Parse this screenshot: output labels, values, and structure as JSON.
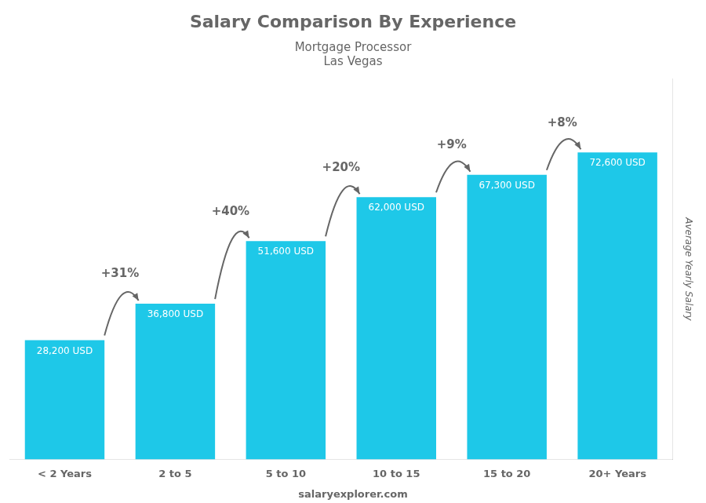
{
  "chart_data": {
    "type": "bar",
    "title": "Salary Comparison By Experience",
    "subtitle": [
      "Mortgage Processor",
      "Las Vegas"
    ],
    "ylabel": "Average Yearly Salary",
    "categories": [
      "< 2 Years",
      "2 to 5",
      "5 to 10",
      "10 to 15",
      "15 to 20",
      "20+ Years"
    ],
    "values": [
      28200,
      36800,
      51600,
      62000,
      67300,
      72600
    ],
    "value_labels": [
      "28,200 USD",
      "36,800 USD",
      "51,600 USD",
      "62,000 USD",
      "67,300 USD",
      "72,600 USD"
    ],
    "data_labels": true,
    "annotations": [
      "+31%",
      "+40%",
      "+20%",
      "+9%",
      "+8%"
    ],
    "footer": "salaryexplorer.com",
    "color": "#1ec8e8",
    "ylim": [
      0,
      90000
    ],
    "grid": false,
    "tick_labels": "x"
  }
}
